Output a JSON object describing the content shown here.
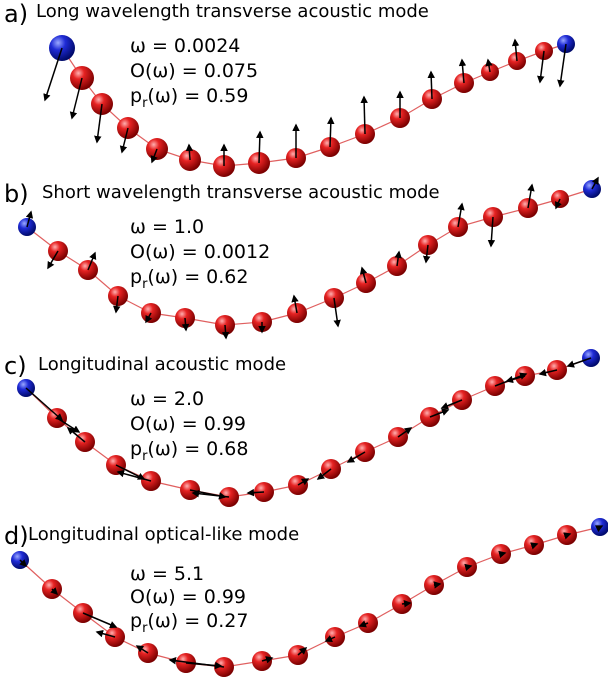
{
  "panels": [
    {
      "letter": "a)",
      "title": "Long wavelength transverse acoustic mode",
      "omega": "ω = 0.0024",
      "overlap": "O(ω) = 0.075",
      "pr_prefix": "p",
      "pr_sub": "r",
      "pr_suffix": "(ω) = 0.59",
      "end_color": "#1f2bd6",
      "bead_color": "#dd1a1a"
    },
    {
      "letter": "b)",
      "title": "Short wavelength transverse acoustic mode",
      "omega": "ω = 1.0",
      "overlap": "O(ω) = 0.0012",
      "pr_prefix": "p",
      "pr_sub": "r",
      "pr_suffix": "(ω) = 0.62",
      "end_color": "#1f2bd6",
      "bead_color": "#dd1a1a"
    },
    {
      "letter": "c)",
      "title": "Longitudinal acoustic mode",
      "omega": "ω = 2.0",
      "overlap": "O(ω) = 0.99",
      "pr_prefix": "p",
      "pr_sub": "r",
      "pr_suffix": "(ω) = 0.68",
      "end_color": "#1f2bd6",
      "bead_color": "#dd1a1a"
    },
    {
      "letter": "d)",
      "title": "Longitudinal optical-like mode",
      "omega": "ω = 5.1",
      "overlap": "O(ω) = 0.99",
      "pr_prefix": "p",
      "pr_sub": "r",
      "pr_suffix": "(ω) = 0.27",
      "end_color": "#1f2bd6",
      "bead_color": "#dd1a1a"
    }
  ]
}
